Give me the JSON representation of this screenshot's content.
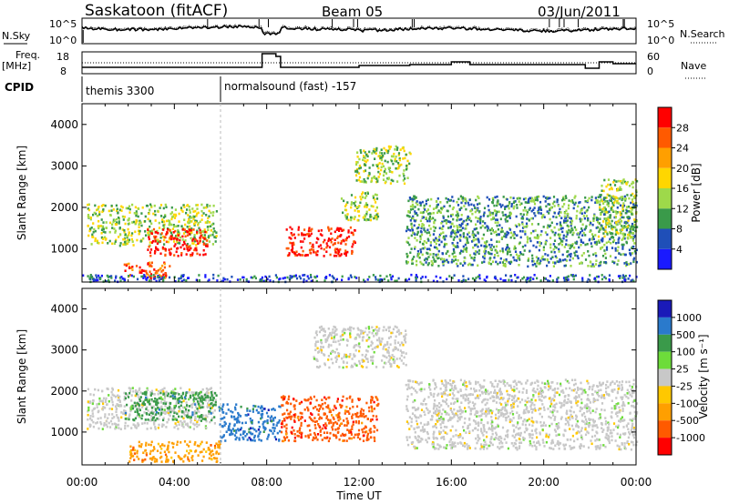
{
  "header": {
    "station": "Saskatoon (fitACF)",
    "beam": "Beam 05",
    "date": "03/Jun/2011"
  },
  "top_panels": {
    "nsky_label": "N.Sky",
    "nsearch_label": "N.Search",
    "noise_ticks": [
      "10^5",
      "10^0"
    ],
    "freq_label_line1": "Freq.",
    "freq_label_line2": "[MHz]",
    "freq_ticks": [
      "18",
      "8"
    ],
    "nave_label": "Nave",
    "nave_ticks": [
      "60",
      "0"
    ],
    "cpid_label": "CPID",
    "cpid_modes": [
      {
        "name": "themis 3300",
        "start_hour": 0
      },
      {
        "name": "normalsound (fast) -157",
        "start_hour": 6
      }
    ]
  },
  "chart_data": [
    {
      "type": "heatmap",
      "panel": "power",
      "xlabel": "",
      "ylabel": "Slant Range [km]",
      "xlim": [
        0,
        24
      ],
      "ylim": [
        200,
        4500
      ],
      "yticks": [
        1000,
        2000,
        3000,
        4000
      ],
      "colorbar_label": "Power [dB]",
      "colorbar_ticks": [
        28,
        24,
        20,
        16,
        12,
        8,
        4
      ],
      "colors": [
        "#ff0000",
        "#ff5a00",
        "#ff9f00",
        "#ffd600",
        "#9ed94a",
        "#3a9a4a",
        "#1f4fb8",
        "#1a1aff"
      ],
      "regions": [
        {
          "t0": 0.2,
          "t1": 5.8,
          "r0": 1100,
          "r1": 2100,
          "level": 12
        },
        {
          "t0": 2.8,
          "t1": 5.4,
          "r0": 850,
          "r1": 1500,
          "level": 28
        },
        {
          "t0": 1.8,
          "t1": 3.8,
          "r0": 300,
          "r1": 700,
          "level": 26
        },
        {
          "t0": 8.8,
          "t1": 11.8,
          "r0": 850,
          "r1": 1550,
          "level": 28
        },
        {
          "t0": 11.2,
          "t1": 12.8,
          "r0": 1700,
          "r1": 2400,
          "level": 14
        },
        {
          "t0": 11.8,
          "t1": 14.2,
          "r0": 2600,
          "r1": 3500,
          "level": 12
        },
        {
          "t0": 14.0,
          "t1": 24.0,
          "r0": 600,
          "r1": 2300,
          "level": 8
        },
        {
          "t0": 22.3,
          "t1": 24.0,
          "r0": 1300,
          "r1": 2700,
          "level": 14
        },
        {
          "t0": 0.0,
          "t1": 24.0,
          "r0": 230,
          "r1": 400,
          "level": 6
        }
      ]
    },
    {
      "type": "heatmap",
      "panel": "velocity",
      "xlabel": "Time UT",
      "ylabel": "Slant Range [km]",
      "xlim": [
        0,
        24
      ],
      "ylim": [
        200,
        4500
      ],
      "xticks": [
        "00:00",
        "04:00",
        "08:00",
        "12:00",
        "16:00",
        "20:00",
        "00:00"
      ],
      "yticks": [
        1000,
        2000,
        3000,
        4000
      ],
      "colorbar_label": "Velocity [m s⁻¹]",
      "colorbar_ticks": [
        1000,
        500,
        100,
        25,
        -25,
        -100,
        -500,
        -1000
      ],
      "colors": [
        "#1a1ab8",
        "#2a7acc",
        "#3a9a4a",
        "#6ddc3a",
        "#c8c8c8",
        "#ffc800",
        "#ff9f00",
        "#ff5a00",
        "#ff0000"
      ],
      "regions": [
        {
          "t0": 0.2,
          "t1": 5.8,
          "r0": 1100,
          "r1": 2100,
          "vel": 0
        },
        {
          "t0": 1.8,
          "t1": 5.8,
          "r0": 1300,
          "r1": 2000,
          "vel": 300
        },
        {
          "t0": 5.9,
          "t1": 8.6,
          "r0": 800,
          "r1": 1700,
          "vel": 500
        },
        {
          "t0": 8.6,
          "t1": 12.8,
          "r0": 800,
          "r1": 1900,
          "vel": -500
        },
        {
          "t0": 10.0,
          "t1": 14.0,
          "r0": 2600,
          "r1": 3600,
          "vel": 0
        },
        {
          "t0": 14.0,
          "t1": 24.0,
          "r0": 600,
          "r1": 2300,
          "vel": 0
        },
        {
          "t0": 2.0,
          "t1": 6.0,
          "r0": 300,
          "r1": 800,
          "vel": -100
        }
      ]
    }
  ]
}
